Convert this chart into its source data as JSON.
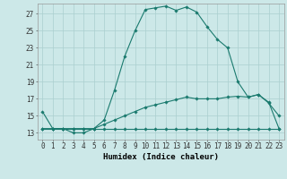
{
  "title": "",
  "xlabel": "Humidex (Indice chaleur)",
  "ylabel": "",
  "bg_color": "#cce8e8",
  "line_color": "#1a7a6e",
  "grid_color": "#aacfcf",
  "x_min": -0.5,
  "x_max": 23.5,
  "y_min": 12.2,
  "y_max": 28.2,
  "x_ticks": [
    0,
    1,
    2,
    3,
    4,
    5,
    6,
    7,
    8,
    9,
    10,
    11,
    12,
    13,
    14,
    15,
    16,
    17,
    18,
    19,
    20,
    21,
    22,
    23
  ],
  "y_ticks": [
    13,
    15,
    17,
    19,
    21,
    23,
    25,
    27
  ],
  "curve1_x": [
    0,
    1,
    2,
    3,
    4,
    5,
    6,
    7,
    8,
    9,
    10,
    11,
    12,
    13,
    14,
    15,
    16,
    17,
    18,
    19,
    20,
    21,
    22,
    23
  ],
  "curve1_y": [
    15.5,
    13.5,
    13.5,
    13.0,
    13.0,
    13.5,
    14.5,
    18.0,
    22.0,
    25.0,
    27.5,
    27.7,
    27.9,
    27.4,
    27.8,
    27.2,
    25.5,
    24.0,
    23.0,
    19.0,
    17.2,
    17.5,
    16.5,
    15.0
  ],
  "curve2_x": [
    0,
    1,
    2,
    3,
    4,
    5,
    6,
    7,
    8,
    9,
    10,
    11,
    12,
    13,
    14,
    15,
    16,
    17,
    18,
    19,
    20,
    21,
    22,
    23
  ],
  "curve2_y": [
    13.5,
    13.5,
    13.5,
    13.5,
    13.5,
    13.5,
    13.5,
    13.5,
    13.5,
    13.5,
    13.5,
    13.5,
    13.5,
    13.5,
    13.5,
    13.5,
    13.5,
    13.5,
    13.5,
    13.5,
    13.5,
    13.5,
    13.5,
    13.5
  ],
  "curve3_x": [
    0,
    1,
    2,
    3,
    4,
    5,
    6,
    7,
    8,
    9,
    10,
    11,
    12,
    13,
    14,
    15,
    16,
    17,
    18,
    19,
    20,
    21,
    22,
    23
  ],
  "curve3_y": [
    13.5,
    13.5,
    13.5,
    13.5,
    13.5,
    13.5,
    14.0,
    14.5,
    15.0,
    15.5,
    16.0,
    16.3,
    16.6,
    16.9,
    17.2,
    17.0,
    17.0,
    17.0,
    17.2,
    17.3,
    17.2,
    17.5,
    16.6,
    13.5
  ],
  "tick_fontsize": 5.5,
  "xlabel_fontsize": 6.5
}
